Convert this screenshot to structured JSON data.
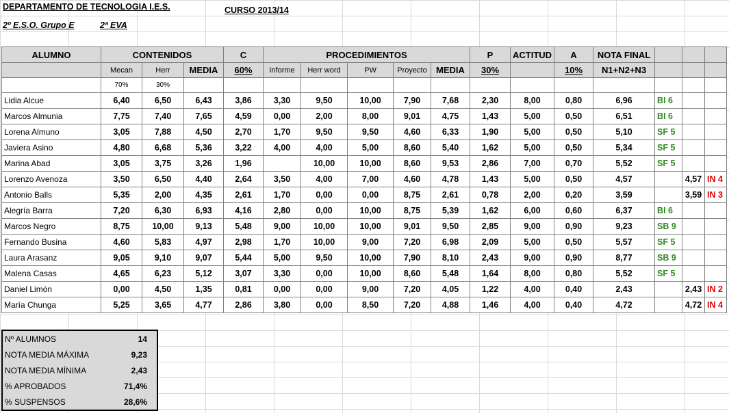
{
  "header": {
    "department": "DEPARTAMENTO DE TECNOLOGIA  I.E.S.",
    "course": "CURSO 2013/14",
    "group": "2º  E.S.O. Grupo E",
    "evaluation": "2ª EVA"
  },
  "columns": {
    "alumno": "ALUMNO",
    "contenidos": "CONTENIDOS",
    "c": "C",
    "procedimientos": "PROCEDIMIENTOS",
    "p": "P",
    "actitud": "ACTITUD",
    "a": "A",
    "nota_final": "NOTA FINAL",
    "mecan": "Mecan",
    "herr": "Herr",
    "media": "MEDIA",
    "c_pct": "60%",
    "informe": "Informe",
    "herr_word": "Herr word",
    "pw": "PW",
    "proyecto": "Proyecto",
    "media2": "MEDIA",
    "p_pct": "30%",
    "a_pct": "10%",
    "formula": "N1+N2+N3",
    "mecan_pct": "70%",
    "herr_pct": "30%"
  },
  "students": [
    {
      "name": "Lidia Alcue",
      "mecan": "6,40",
      "herr": "6,50",
      "media": "6,43",
      "c": "3,86",
      "informe": "3,30",
      "herr_word": "9,50",
      "pw": "10,00",
      "proyecto": "7,90",
      "media2": "7,68",
      "p": "2,30",
      "actitud": "8,00",
      "a": "0,80",
      "final": "6,96",
      "grade": "BI 6",
      "fail_note": "",
      "fail_grade": ""
    },
    {
      "name": "Marcos Almunia",
      "mecan": "7,75",
      "herr": "7,40",
      "media": "7,65",
      "c": "4,59",
      "informe": "0,00",
      "herr_word": "2,00",
      "pw": "8,00",
      "proyecto": "9,01",
      "media2": "4,75",
      "p": "1,43",
      "actitud": "5,00",
      "a": "0,50",
      "final": "6,51",
      "grade": "BI 6",
      "fail_note": "",
      "fail_grade": ""
    },
    {
      "name": "Lorena Almuno",
      "mecan": "3,05",
      "herr": "7,88",
      "media": "4,50",
      "c": "2,70",
      "informe": "1,70",
      "herr_word": "9,50",
      "pw": "9,50",
      "proyecto": "4,60",
      "media2": "6,33",
      "p": "1,90",
      "actitud": "5,00",
      "a": "0,50",
      "final": "5,10",
      "grade": "SF 5",
      "fail_note": "",
      "fail_grade": ""
    },
    {
      "name": "Javiera Asino",
      "mecan": "4,80",
      "herr": "6,68",
      "media": "5,36",
      "c": "3,22",
      "informe": "4,00",
      "herr_word": "4,00",
      "pw": "5,00",
      "proyecto": "8,60",
      "media2": "5,40",
      "p": "1,62",
      "actitud": "5,00",
      "a": "0,50",
      "final": "5,34",
      "grade": "SF 5",
      "fail_note": "",
      "fail_grade": ""
    },
    {
      "name": "Marina Abad",
      "mecan": "3,05",
      "herr": "3,75",
      "media": "3,26",
      "c": "1,96",
      "informe": "",
      "herr_word": "10,00",
      "pw": "10,00",
      "proyecto": "8,60",
      "media2": "9,53",
      "p": "2,86",
      "actitud": "7,00",
      "a": "0,70",
      "final": "5,52",
      "grade": "SF 5",
      "fail_note": "",
      "fail_grade": ""
    },
    {
      "name": "Lorenzo Avenoza",
      "mecan": "3,50",
      "herr": "6,50",
      "media": "4,40",
      "c": "2,64",
      "informe": "3,50",
      "herr_word": "4,00",
      "pw": "7,00",
      "proyecto": "4,60",
      "media2": "4,78",
      "p": "1,43",
      "actitud": "5,00",
      "a": "0,50",
      "final": "4,57",
      "grade": "",
      "fail_note": "4,57",
      "fail_grade": "IN 4"
    },
    {
      "name": "Antonio Balls",
      "mecan": "5,35",
      "herr": "2,00",
      "media": "4,35",
      "c": "2,61",
      "informe": "1,70",
      "herr_word": "0,00",
      "pw": "0,00",
      "proyecto": "8,75",
      "media2": "2,61",
      "p": "0,78",
      "actitud": "2,00",
      "a": "0,20",
      "final": "3,59",
      "grade": "",
      "fail_note": "3,59",
      "fail_grade": "IN 3"
    },
    {
      "name": "Alegría Barra",
      "mecan": "7,20",
      "herr": "6,30",
      "media": "6,93",
      "c": "4,16",
      "informe": "2,80",
      "herr_word": "0,00",
      "pw": "10,00",
      "proyecto": "8,75",
      "media2": "5,39",
      "p": "1,62",
      "actitud": "6,00",
      "a": "0,60",
      "final": "6,37",
      "grade": "BI 6",
      "fail_note": "",
      "fail_grade": ""
    },
    {
      "name": "Marcos Negro",
      "mecan": "8,75",
      "herr": "10,00",
      "media": "9,13",
      "c": "5,48",
      "informe": "9,00",
      "herr_word": "10,00",
      "pw": "10,00",
      "proyecto": "9,01",
      "media2": "9,50",
      "p": "2,85",
      "actitud": "9,00",
      "a": "0,90",
      "final": "9,23",
      "grade": "SB 9",
      "fail_note": "",
      "fail_grade": ""
    },
    {
      "name": "Fernando Busina",
      "mecan": "4,60",
      "herr": "5,83",
      "media": "4,97",
      "c": "2,98",
      "informe": "1,70",
      "herr_word": "10,00",
      "pw": "9,00",
      "proyecto": "7,20",
      "media2": "6,98",
      "p": "2,09",
      "actitud": "5,00",
      "a": "0,50",
      "final": "5,57",
      "grade": "SF 5",
      "fail_note": "",
      "fail_grade": ""
    },
    {
      "name": "Laura Arasanz",
      "mecan": "9,05",
      "herr": "9,10",
      "media": "9,07",
      "c": "5,44",
      "informe": "5,00",
      "herr_word": "9,50",
      "pw": "10,00",
      "proyecto": "7,90",
      "media2": "8,10",
      "p": "2,43",
      "actitud": "9,00",
      "a": "0,90",
      "final": "8,77",
      "grade": "SB 9",
      "fail_note": "",
      "fail_grade": ""
    },
    {
      "name": "Malena Casas",
      "mecan": "4,65",
      "herr": "6,23",
      "media": "5,12",
      "c": "3,07",
      "informe": "3,30",
      "herr_word": "0,00",
      "pw": "10,00",
      "proyecto": "8,60",
      "media2": "5,48",
      "p": "1,64",
      "actitud": "8,00",
      "a": "0,80",
      "final": "5,52",
      "grade": "SF 5",
      "fail_note": "",
      "fail_grade": ""
    },
    {
      "name": "Daniel Limón",
      "mecan": "0,00",
      "herr": "4,50",
      "media": "1,35",
      "c": "0,81",
      "informe": "0,00",
      "herr_word": "0,00",
      "pw": "9,00",
      "proyecto": "7,20",
      "media2": "4,05",
      "p": "1,22",
      "actitud": "4,00",
      "a": "0,40",
      "final": "2,43",
      "grade": "",
      "fail_note": "2,43",
      "fail_grade": "IN 2"
    },
    {
      "name": "María Chunga",
      "mecan": "5,25",
      "herr": "3,65",
      "media": "4,77",
      "c": "2,86",
      "informe": "3,80",
      "herr_word": "0,00",
      "pw": "8,50",
      "proyecto": "7,20",
      "media2": "4,88",
      "p": "1,46",
      "actitud": "4,00",
      "a": "0,40",
      "final": "4,72",
      "grade": "",
      "fail_note": "4,72",
      "fail_grade": "IN 4"
    }
  ],
  "stats": [
    {
      "label": "Nº ALUMNOS",
      "value": "14"
    },
    {
      "label": "NOTA MEDIA MÁXIMA",
      "value": "9,23"
    },
    {
      "label": "NOTA MEDIA MÍNIMA",
      "value": "2,43"
    },
    {
      "label": "% APROBADOS",
      "value": "71,4%"
    },
    {
      "label": "% SUSPENSOS",
      "value": "28,6%"
    }
  ],
  "colors": {
    "pass": "#2e8b1f",
    "fail": "#e30000",
    "header_bg": "#d9d9d9"
  }
}
